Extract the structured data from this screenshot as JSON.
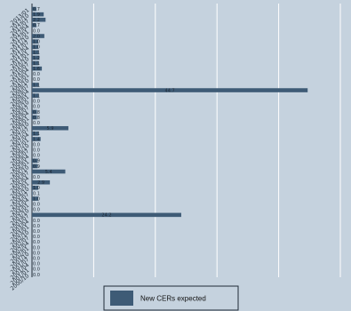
{
  "chart_data": {
    "type": "bar",
    "orientation": "horizontal",
    "xlim": [
      0,
      50
    ],
    "grid": true,
    "legend_position": "bottom",
    "categories": [
      "2013/01",
      "2012/10",
      "2012/07",
      "2012/04",
      "2012/01",
      "2011/10",
      "2011/07",
      "2011/04",
      "2011/01",
      "2010/10",
      "2010/07",
      "2010/04",
      "2010/01",
      "2009/10",
      "2009/07",
      "2009/04",
      "2009/01",
      "2008/10",
      "2008/07",
      "2008/04",
      "2008/01",
      "2007/10",
      "2007/07",
      "2007/04",
      "2007/01",
      "2006/10",
      "2006/07",
      "2006/04",
      "2006/01",
      "2005/10",
      "2005/07",
      "2005/04",
      "2005/01",
      "2004/10",
      "2004/07",
      "2004/04",
      "2004/01",
      "2003/10",
      "2003/07",
      "2003/04",
      "2003/01",
      "2002/10",
      "2002/07",
      "2002/04",
      "2002/01",
      "2001/10",
      "2001/07",
      "2001/04",
      "2001/01",
      "2000/10"
    ],
    "series": [
      {
        "name": "New CERs expected",
        "values": [
          0.7,
          1.9,
          2.2,
          0.7,
          0.0,
          2.0,
          1.0,
          1.0,
          1.1,
          1.2,
          1.1,
          1.6,
          0.0,
          0.0,
          1.1,
          44.7,
          1.1,
          0.0,
          0.0,
          0.8,
          0.8,
          0.0,
          5.9,
          1.1,
          1.4,
          0.0,
          0.0,
          0.0,
          0.9,
          0.9,
          5.4,
          0.0,
          2.9,
          1.0,
          0.1,
          1.0,
          0.0,
          0.0,
          24.2,
          0.0,
          0.0,
          0.0,
          0.0,
          0.0,
          0.0,
          0.0,
          0.0,
          0.0,
          0.0,
          0.0
        ],
        "value_labels": [
          "0.7",
          "1.9",
          "2.2",
          "0.7",
          "0.0",
          "2.0",
          "1.0",
          "1.0",
          "1.1",
          "1.2",
          "1.1",
          "1.6",
          "0.0",
          "0.0",
          "1.1",
          "44.7",
          "1.1",
          "0.0",
          "0.0",
          "0.8",
          "0.8",
          "0.0",
          "5.9",
          "1.1",
          "1.4",
          "0.0",
          "0.0",
          "0.0",
          "0.9",
          "0.9",
          "5.4",
          "0.0",
          "2.9",
          "1.0",
          "0.1",
          "1.0",
          "0.0",
          "0.0",
          "24.2",
          "0.0",
          "0.0",
          "0.0",
          "0.0",
          "0.0",
          "0.0",
          "0.0",
          "0.0",
          "0.0",
          "0.0",
          "0.0"
        ],
        "color": "#3e5b76"
      }
    ],
    "legend": [
      "New CERs expected"
    ],
    "title": "",
    "xlabel": "",
    "ylabel": ""
  }
}
